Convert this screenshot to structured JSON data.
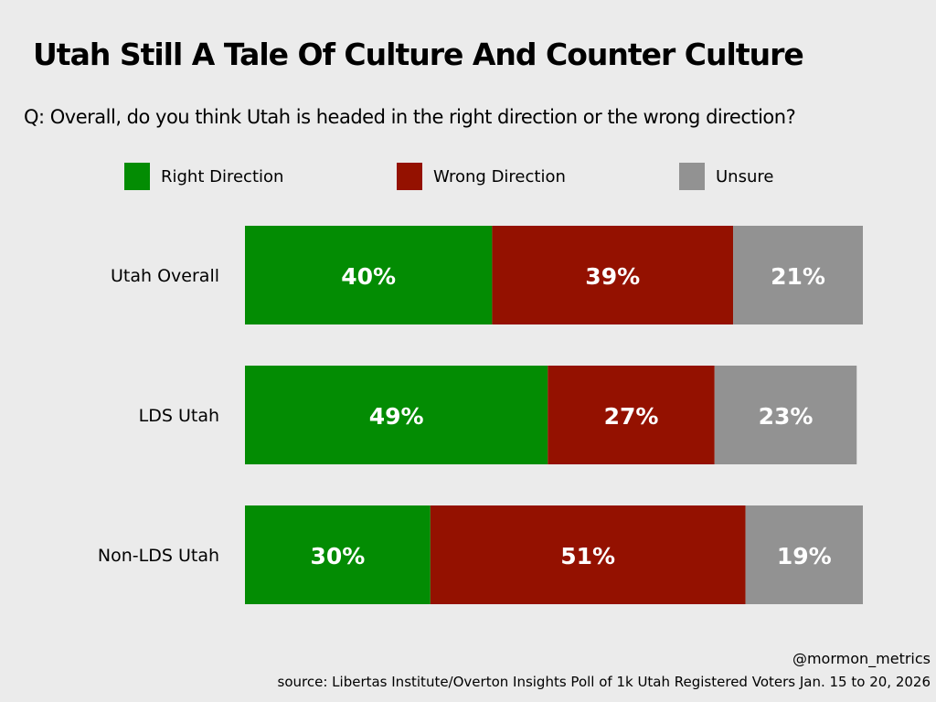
{
  "title": "Utah Still A Tale Of Culture And Counter Culture",
  "subtitle": "Q: Overall, do you think Utah is headed in the right direction or the wrong direction?",
  "legend": [
    {
      "label": "Right Direction",
      "color": "#038c03"
    },
    {
      "label": "Wrong Direction",
      "color": "#941100"
    },
    {
      "label": "Unsure",
      "color": "#929292"
    }
  ],
  "chart_data": {
    "type": "bar",
    "orientation": "horizontal",
    "stacked": true,
    "title": "Utah Still A Tale Of Culture And Counter Culture",
    "categories": [
      "Utah Overall",
      "LDS Utah",
      "Non-LDS Utah"
    ],
    "series": [
      {
        "name": "Right Direction",
        "color": "#038c03",
        "values": [
          40,
          49,
          30
        ]
      },
      {
        "name": "Wrong Direction",
        "color": "#941100",
        "values": [
          39,
          27,
          51
        ]
      },
      {
        "name": "Unsure",
        "color": "#929292",
        "values": [
          21,
          23,
          19
        ]
      }
    ],
    "value_suffix": "%",
    "xlabel": "",
    "ylabel": "",
    "xlim": [
      0,
      100
    ],
    "grid": false,
    "legend_position": "top"
  },
  "footer": {
    "handle": "@mormon_metrics",
    "source": "source: Libertas Institute/Overton Insights Poll of 1k Utah Registered Voters Jan. 15 to 20, 2026"
  }
}
